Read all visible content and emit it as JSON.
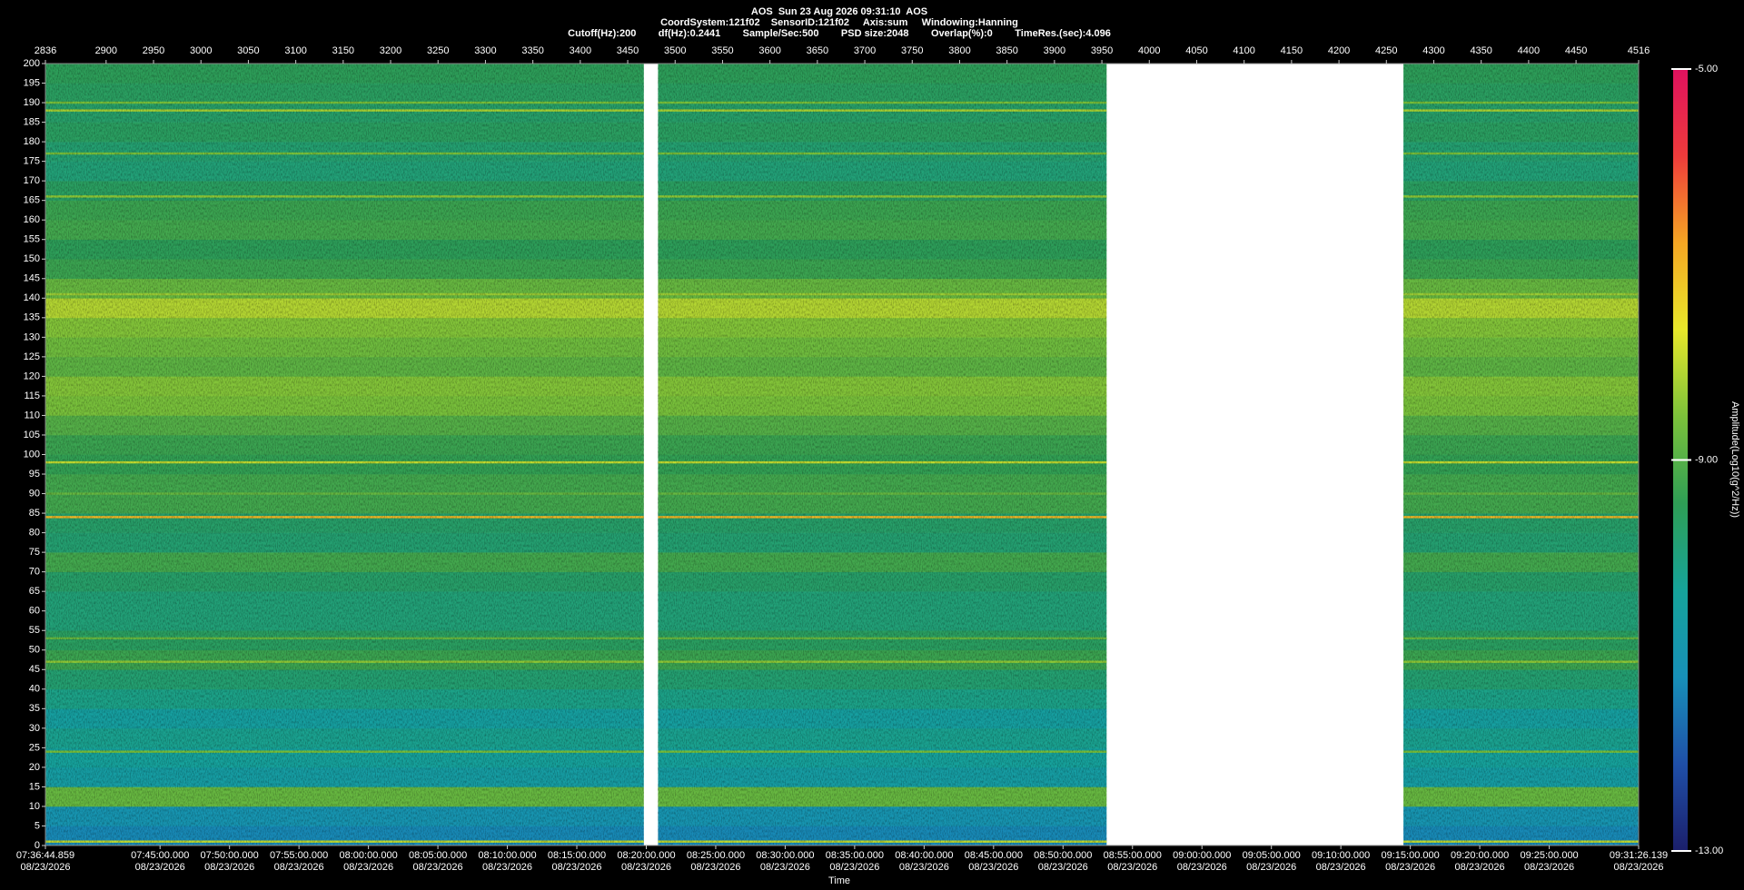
{
  "chart_data": {
    "type": "spectrogram",
    "title": "AOS  Sun 23 Aug 2026 09:31:10  AOS",
    "subtitle": "CoordSystem:121f02    SensorID:121f02     Axis:sum     Windowing:Hanning",
    "subtitle2": "Cutoff(Hz):200        df(Hz):0.2441        Sample/Sec:500        PSD size:2048        Overlap(%):0        TimeRes.(sec):4.096",
    "xlabel": "Time",
    "xlim": [
      2836,
      4516
    ],
    "xticks": [
      2836,
      2900,
      2950,
      3000,
      3050,
      3100,
      3150,
      3200,
      3250,
      3300,
      3350,
      3400,
      3450,
      3500,
      3550,
      3600,
      3650,
      3700,
      3750,
      3800,
      3850,
      3900,
      3950,
      4000,
      4050,
      4100,
      4150,
      4200,
      4250,
      4300,
      4350,
      4400,
      4450,
      4516
    ],
    "time_ticks": [
      {
        "value": 2836,
        "label": "07:36:44.859\n08/23/2026"
      },
      {
        "value": 2956.88,
        "label": "07:45:00.000\n08/23/2026"
      },
      {
        "value": 3030.13,
        "label": "07:50:00.000\n08/23/2026"
      },
      {
        "value": 3103.37,
        "label": "07:55:00.000\n08/23/2026"
      },
      {
        "value": 3176.61,
        "label": "08:00:00.000\n08/23/2026"
      },
      {
        "value": 3249.85,
        "label": "08:05:00.000\n08/23/2026"
      },
      {
        "value": 3323.09,
        "label": "08:10:00.000\n08/23/2026"
      },
      {
        "value": 3396.34,
        "label": "08:15:00.000\n08/23/2026"
      },
      {
        "value": 3469.58,
        "label": "08:20:00.000\n08/23/2026"
      },
      {
        "value": 3542.82,
        "label": "08:25:00.000\n08/23/2026"
      },
      {
        "value": 3616.06,
        "label": "08:30:00.000\n08/23/2026"
      },
      {
        "value": 3689.3,
        "label": "08:35:00.000\n08/23/2026"
      },
      {
        "value": 3762.55,
        "label": "08:40:00.000\n08/23/2026"
      },
      {
        "value": 3835.79,
        "label": "08:45:00.000\n08/23/2026"
      },
      {
        "value": 3909.03,
        "label": "08:50:00.000\n08/23/2026"
      },
      {
        "value": 3982.27,
        "label": "08:55:00.000\n08/23/2026"
      },
      {
        "value": 4055.52,
        "label": "09:00:00.000\n08/23/2026"
      },
      {
        "value": 4128.76,
        "label": "09:05:00.000\n08/23/2026"
      },
      {
        "value": 4202,
        "label": "09:10:00.000\n08/23/2026"
      },
      {
        "value": 4275.24,
        "label": "09:15:00.000\n08/23/2026"
      },
      {
        "value": 4348.48,
        "label": "09:20:00.000\n08/23/2026"
      },
      {
        "value": 4421.73,
        "label": "09:25:00.000\n08/23/2026"
      },
      {
        "value": 4516,
        "label": "09:31:26.139\n08/23/2026"
      }
    ],
    "ylim": [
      0,
      200
    ],
    "yticks": [
      0,
      5,
      10,
      15,
      20,
      25,
      30,
      35,
      40,
      45,
      50,
      55,
      60,
      65,
      70,
      75,
      80,
      85,
      90,
      95,
      100,
      105,
      110,
      115,
      120,
      125,
      130,
      135,
      140,
      145,
      150,
      155,
      160,
      165,
      170,
      175,
      180,
      185,
      190,
      195,
      200
    ],
    "segments": [
      [
        2836,
        3467
      ],
      [
        3482,
        3955
      ],
      [
        4268,
        4516
      ]
    ],
    "freq_bins": [
      0,
      5,
      10,
      15,
      20,
      25,
      30,
      35,
      40,
      45,
      50,
      55,
      60,
      65,
      70,
      75,
      80,
      85,
      90,
      95,
      100,
      105,
      110,
      115,
      120,
      125,
      130,
      135,
      140,
      145,
      150,
      155,
      160,
      165,
      170,
      175,
      180,
      185,
      190,
      195,
      200
    ],
    "amplitude": [
      -11.3,
      -11.0,
      -8.8,
      -10.6,
      -10.4,
      -10.2,
      -10.5,
      -10.1,
      -9.8,
      -9.3,
      -9.6,
      -9.9,
      -9.9,
      -9.7,
      -9.2,
      -9.8,
      -9.7,
      -9.2,
      -9.2,
      -9.4,
      -9.3,
      -9.0,
      -8.6,
      -8.5,
      -8.9,
      -8.7,
      -8.5,
      -8.1,
      -8.8,
      -9.3,
      -9.5,
      -9.2,
      -9.3,
      -9.6,
      -9.9,
      -9.8,
      -9.6,
      -9.7,
      -9.6,
      -9.5
    ],
    "lines": {
      "freq": [
        1,
        24,
        47,
        53,
        84,
        90,
        98,
        141,
        166,
        177,
        188,
        190
      ],
      "amplitude": [
        -8.0,
        -8.6,
        -8.4,
        -8.8,
        -7.0,
        -8.8,
        -8.0,
        -8.3,
        -8.4,
        -8.6,
        -8.2,
        -8.6
      ]
    },
    "colorbar": {
      "label": "Amplitude(Log10(g^2/Hz))",
      "lim": [
        -13,
        -5
      ],
      "ticks": [
        {
          "value": -13,
          "label": "-13.00"
        },
        {
          "value": -9,
          "label": "-9.00"
        },
        {
          "value": -5,
          "label": "-5.00"
        }
      ],
      "colormap": [
        "#1b1f6b",
        "#1f4fa8",
        "#1790b8",
        "#16a39a",
        "#2e9e55",
        "#7cc23a",
        "#e8e82a",
        "#f5a623",
        "#ee3b3b",
        "#e0115f"
      ]
    }
  }
}
